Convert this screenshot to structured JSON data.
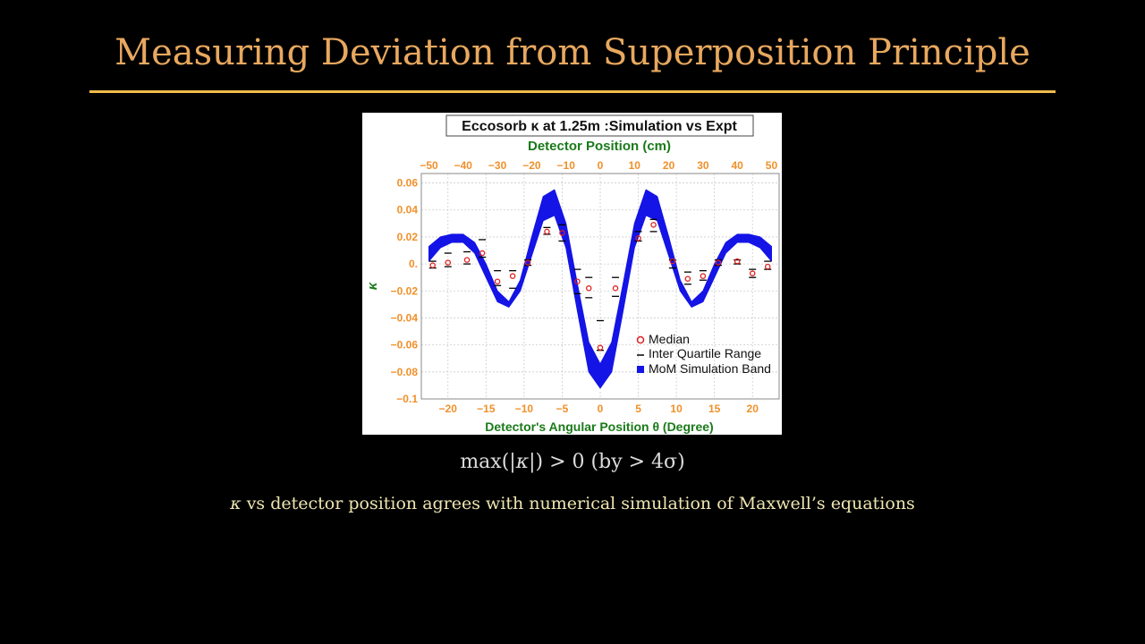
{
  "slide": {
    "title": "Measuring Deviation from Superposition Principle",
    "statement_prefix": "max(|",
    "statement_symbol": "κ",
    "statement_suffix": "|) > 0 (by > 4σ)",
    "caption_symbol": "κ",
    "caption_text": " vs detector position agrees with numerical simulation of Maxwell’s equations"
  },
  "colors": {
    "title": "#e8a85f",
    "rule": "#f0bb4a",
    "band": "#1414e6",
    "median": "#e02020",
    "tick_labels": "#f0902a",
    "axis_titles": "#1a7a1a"
  },
  "chart_data": {
    "type": "scatter",
    "title": "Eccosorb κ at 1.25m :Simulation vs Expt",
    "xlabel": "Detector's Angular Position θ (Degree)",
    "x2label": "Detector Position (cm)",
    "ylabel": "κ",
    "xlim": [
      -23.5,
      23.5
    ],
    "ylim": [
      -0.1,
      0.067
    ],
    "x_ticks": [
      -20,
      -15,
      -10,
      -5,
      0,
      5,
      10,
      15,
      20
    ],
    "x_tick_labels": [
      "−20",
      "−15",
      "−10",
      "−5",
      "0",
      "5",
      "10",
      "15",
      "20"
    ],
    "x2_ticks": [
      -50,
      -40,
      -30,
      -20,
      -10,
      0,
      10,
      20,
      30,
      40,
      50
    ],
    "x2_tick_labels": [
      "−50",
      "−40",
      "−30",
      "−20",
      "−10",
      "0",
      "10",
      "20",
      "30",
      "40",
      "50"
    ],
    "y_ticks": [
      0.06,
      0.04,
      0.02,
      0,
      -0.02,
      -0.04,
      -0.06,
      -0.08,
      -0.1
    ],
    "y_tick_labels": [
      "0.06",
      "0.04",
      "0.02",
      "0.",
      "−0.02",
      "−0.04",
      "−0.06",
      "−0.08",
      "−0.1"
    ],
    "grid": true,
    "legend_position": "bottom-right",
    "legend": [
      "Median",
      "Inter Quartile Range",
      "MoM Simulation Band"
    ],
    "series": [
      {
        "name": "MoM Simulation Band",
        "kind": "band",
        "x": [
          -22.5,
          -21,
          -19.5,
          -18,
          -16.5,
          -15,
          -13.5,
          -12,
          -10.5,
          -9,
          -7.5,
          -6,
          -4.5,
          -3,
          -1.5,
          0,
          1.5,
          3,
          4.5,
          6,
          7.5,
          9,
          10.5,
          12,
          13.5,
          15,
          16.5,
          18,
          19.5,
          21,
          22.5
        ],
        "upper": [
          0.013,
          0.02,
          0.022,
          0.022,
          0.016,
          0.0,
          -0.02,
          -0.028,
          -0.012,
          0.02,
          0.05,
          0.055,
          0.03,
          -0.015,
          -0.058,
          -0.074,
          -0.058,
          -0.015,
          0.03,
          0.055,
          0.05,
          0.02,
          -0.012,
          -0.028,
          -0.02,
          0.0,
          0.016,
          0.022,
          0.022,
          0.02,
          0.013
        ],
        "lower": [
          0.002,
          0.012,
          0.016,
          0.016,
          0.008,
          -0.01,
          -0.028,
          -0.032,
          -0.02,
          0.006,
          0.032,
          0.036,
          0.012,
          -0.035,
          -0.08,
          -0.092,
          -0.08,
          -0.035,
          0.012,
          0.036,
          0.032,
          0.006,
          -0.02,
          -0.032,
          -0.028,
          -0.01,
          0.008,
          0.016,
          0.016,
          0.012,
          0.002
        ]
      },
      {
        "name": "Median",
        "kind": "points",
        "x": [
          -22,
          -20,
          -17.5,
          -15.5,
          -13.5,
          -11.5,
          -9.5,
          -7,
          -5,
          -3,
          -1.5,
          0,
          2,
          5,
          7,
          9.5,
          11.5,
          13.5,
          15.5,
          18,
          20,
          22
        ],
        "y": [
          -0.001,
          0.001,
          0.003,
          0.008,
          -0.013,
          -0.009,
          0.001,
          0.024,
          0.023,
          -0.013,
          -0.018,
          -0.062,
          -0.018,
          0.019,
          0.029,
          0.002,
          -0.011,
          -0.009,
          0.001,
          0.002,
          -0.007,
          -0.002
        ]
      },
      {
        "name": "Inter Quartile Range",
        "kind": "dashes",
        "x": [
          -22,
          -20,
          -17.5,
          -15.5,
          -13.5,
          -11.5,
          -9.5,
          -7,
          -5,
          -3,
          -1.5,
          0,
          2,
          5,
          7,
          9.5,
          11.5,
          13.5,
          15.5,
          18,
          20,
          22
        ],
        "low": [
          -0.003,
          -0.002,
          0.0,
          0.005,
          -0.016,
          -0.018,
          -0.001,
          0.022,
          0.017,
          -0.022,
          -0.025,
          -0.064,
          -0.024,
          0.017,
          0.024,
          -0.003,
          -0.015,
          -0.012,
          -0.001,
          0.0,
          -0.01,
          -0.004
        ],
        "high": [
          0.002,
          0.008,
          0.009,
          0.018,
          -0.005,
          -0.005,
          0.003,
          0.027,
          0.029,
          -0.004,
          -0.01,
          -0.042,
          -0.01,
          0.024,
          0.033,
          0.003,
          -0.006,
          -0.005,
          0.003,
          0.003,
          -0.004,
          0.002
        ]
      }
    ]
  }
}
